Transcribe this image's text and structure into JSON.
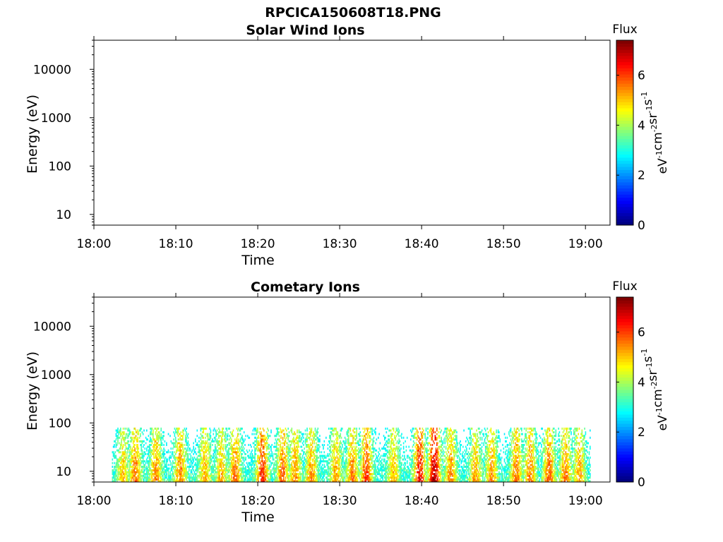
{
  "figure_title": "RPCICA150608T18.PNG",
  "chart_data": [
    {
      "type": "heatmap",
      "title": "Solar Wind Ions",
      "xlabel": "Time",
      "ylabel": "Energy (eV)",
      "x_ticks": [
        "18:00",
        "18:10",
        "18:20",
        "18:30",
        "18:40",
        "18:50",
        "19:00"
      ],
      "x_range_minutes": [
        0,
        63
      ],
      "y_ticks": [
        "10",
        "100",
        "1000",
        "10000"
      ],
      "y_scale": "log",
      "y_range": [
        6,
        40000
      ],
      "colorbar": {
        "title": "Flux",
        "label": "eV-1cm-2sr-1s-1",
        "ticks": [
          "0",
          "2",
          "4",
          "6"
        ],
        "range": [
          0,
          7.4
        ],
        "colormap": "jet"
      },
      "data": []
    },
    {
      "type": "heatmap",
      "title": "Cometary Ions",
      "xlabel": "Time",
      "ylabel": "Energy (eV)",
      "x_ticks": [
        "18:00",
        "18:10",
        "18:20",
        "18:30",
        "18:40",
        "18:50",
        "19:00"
      ],
      "x_range_minutes": [
        0,
        63
      ],
      "y_ticks": [
        "10",
        "100",
        "1000",
        "10000"
      ],
      "y_scale": "log",
      "y_range": [
        6,
        40000
      ],
      "colorbar": {
        "title": "Flux",
        "label": "eV-1cm-2sr-1s-1",
        "ticks": [
          "0",
          "2",
          "4",
          "6"
        ],
        "range": [
          0,
          7.4
        ],
        "colormap": "jet"
      },
      "data_extent": {
        "time_start_minutes": 2.2,
        "time_end_minutes": 60.5,
        "energy_min_eV": 6,
        "energy_max_eV": 80
      },
      "intensity_peaks": [
        {
          "time_minutes": 3.5,
          "flux": 5.2
        },
        {
          "time_minutes": 5.0,
          "flux": 5.8
        },
        {
          "time_minutes": 7.5,
          "flux": 5.6
        },
        {
          "time_minutes": 10.5,
          "flux": 5.7
        },
        {
          "time_minutes": 13.5,
          "flux": 5.4
        },
        {
          "time_minutes": 15.5,
          "flux": 5.3
        },
        {
          "time_minutes": 17.2,
          "flux": 5.9
        },
        {
          "time_minutes": 20.5,
          "flux": 6.4
        },
        {
          "time_minutes": 23.0,
          "flux": 5.9
        },
        {
          "time_minutes": 24.5,
          "flux": 5.6
        },
        {
          "time_minutes": 26.5,
          "flux": 5.6
        },
        {
          "time_minutes": 29.5,
          "flux": 5.4
        },
        {
          "time_minutes": 31.5,
          "flux": 5.7
        },
        {
          "time_minutes": 33.2,
          "flux": 6.2
        },
        {
          "time_minutes": 36.5,
          "flux": 5.3
        },
        {
          "time_minutes": 39.7,
          "flux": 6.6
        },
        {
          "time_minutes": 41.5,
          "flux": 7.2
        },
        {
          "time_minutes": 43.5,
          "flux": 5.6
        },
        {
          "time_minutes": 46.5,
          "flux": 5.4
        },
        {
          "time_minutes": 48.5,
          "flux": 5.6
        },
        {
          "time_minutes": 51.5,
          "flux": 5.8
        },
        {
          "time_minutes": 53.2,
          "flux": 5.7
        },
        {
          "time_minutes": 55.5,
          "flux": 5.9
        },
        {
          "time_minutes": 57.5,
          "flux": 5.7
        },
        {
          "time_minutes": 59.2,
          "flux": 5.5
        }
      ]
    }
  ]
}
